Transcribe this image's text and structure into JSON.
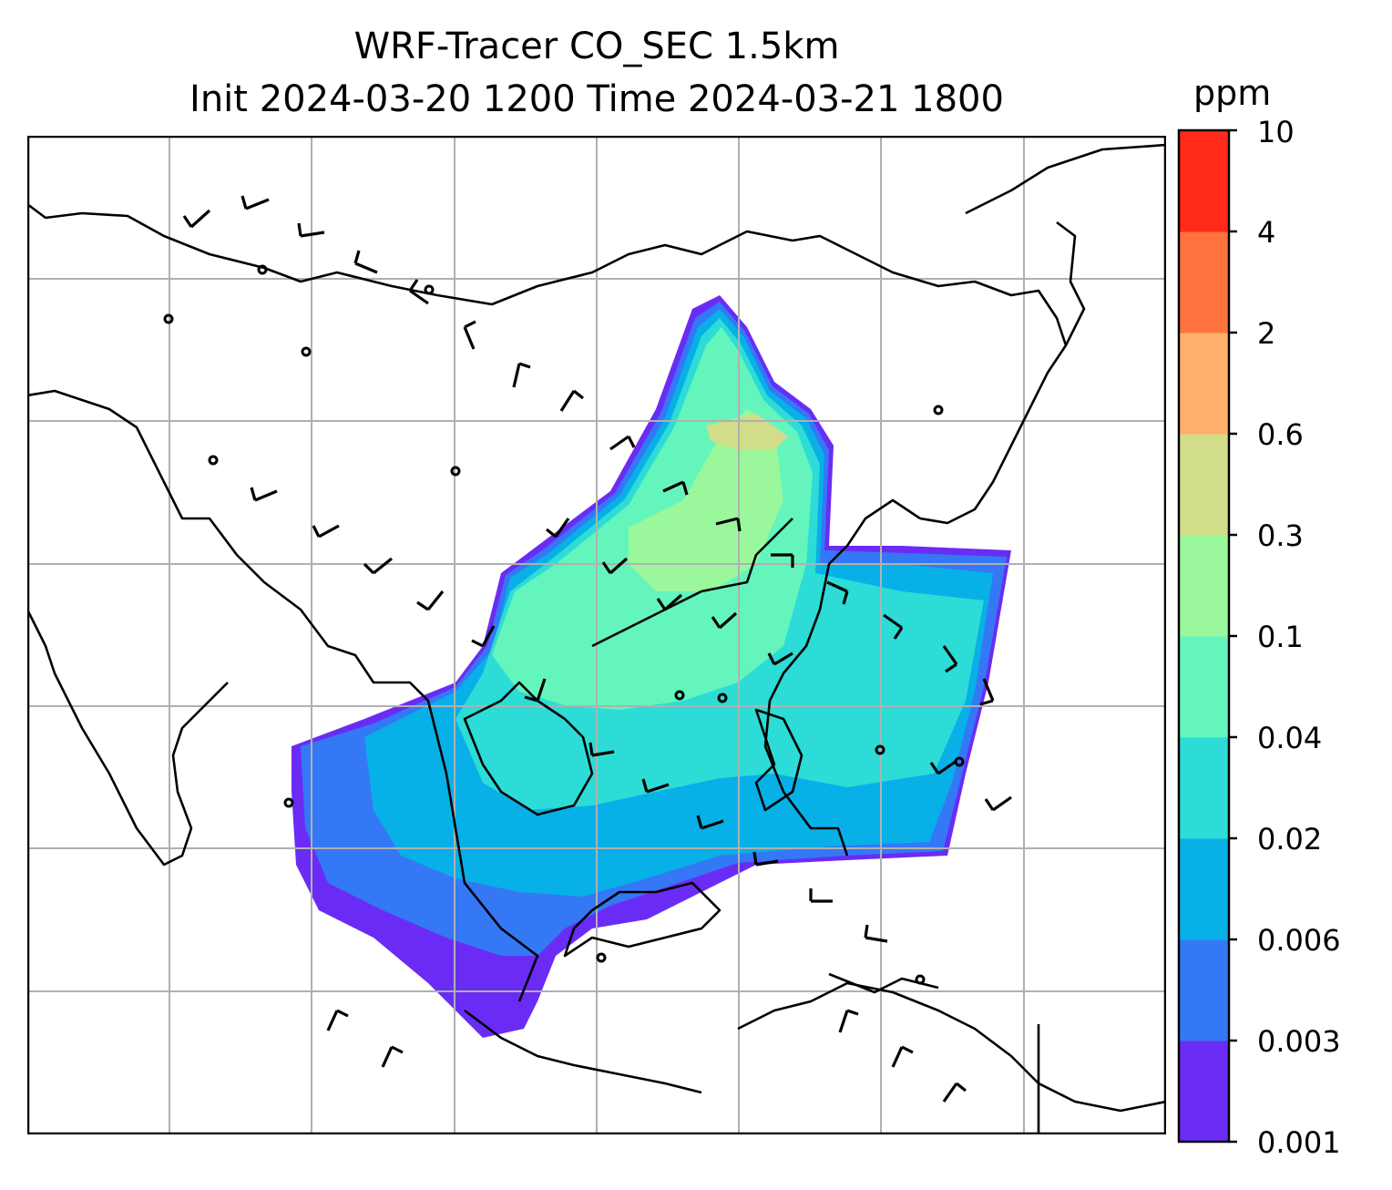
{
  "title_line1": "WRF-Tracer CO_SEC 1.5km",
  "title_line2": "Init 2024-03-20 1200 Time 2024-03-21 1800",
  "colorbar": {
    "unit": "ppm",
    "ticks": [
      "0.001",
      "0.003",
      "0.006",
      "0.02",
      "0.04",
      "0.1",
      "0.3",
      "0.6",
      "2",
      "4",
      "10"
    ],
    "colors": [
      "#6a2cf5",
      "#3478f6",
      "#08b0e8",
      "#2ddcd6",
      "#64f5bc",
      "#9af79c",
      "#d1dd88",
      "#fdb06a",
      "#ff733e",
      "#ff2a1a"
    ]
  },
  "map": {
    "gridlines": true,
    "grid_color": "#b0b0b0",
    "coastline_color": "#000000",
    "overlay": "wind-barbs",
    "plume_levels_shown": [
      "0.001",
      "0.003",
      "0.006",
      "0.02",
      "0.04",
      "0.1",
      "0.3"
    ]
  }
}
